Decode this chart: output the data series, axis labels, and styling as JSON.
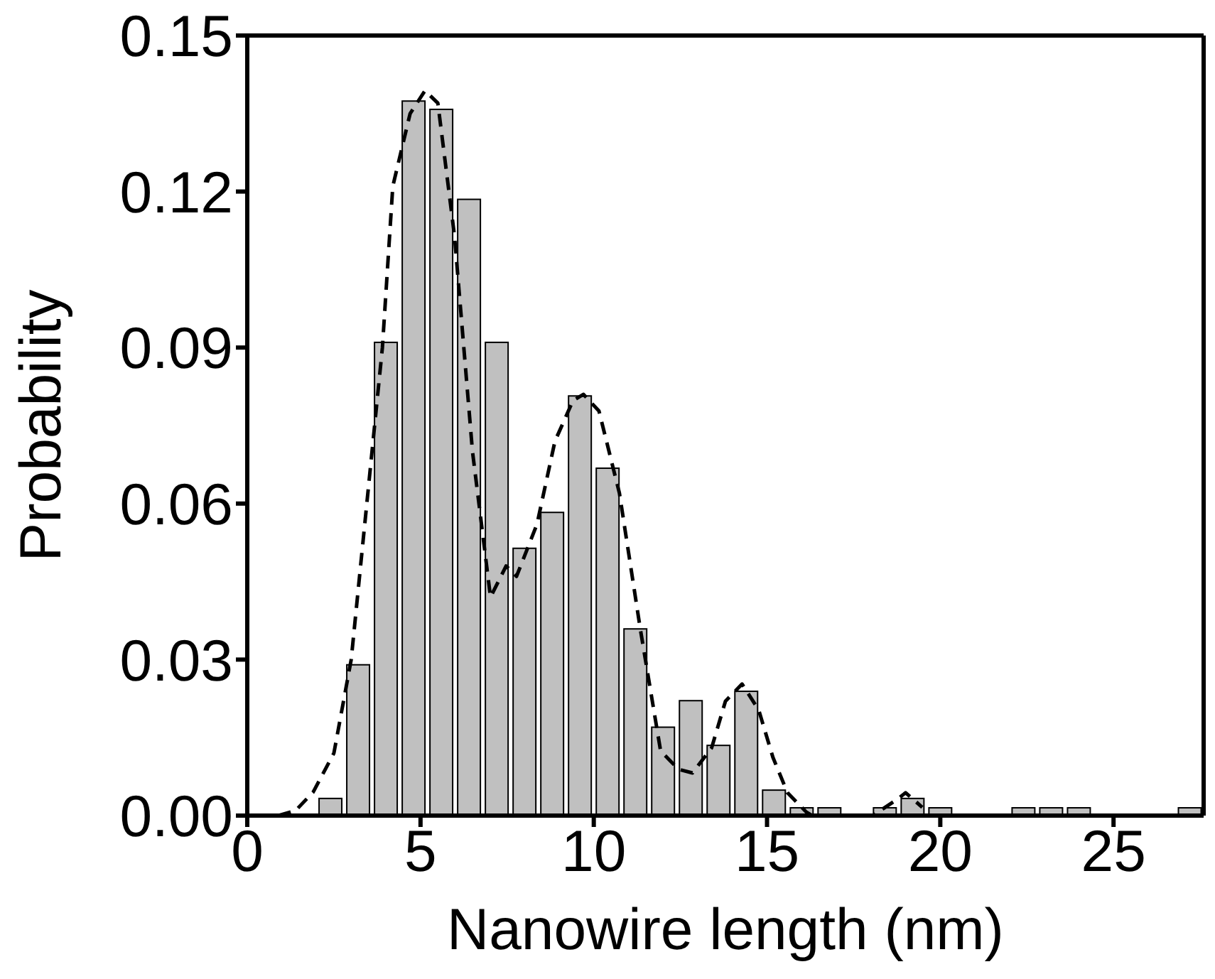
{
  "chart_data": {
    "type": "histogram",
    "xlabel": "Nanowire length (nm)",
    "ylabel": "Probability",
    "xlim": [
      0,
      27.6
    ],
    "xticks": [
      0,
      5,
      10,
      15,
      20,
      25
    ],
    "ylim": [
      0,
      0.15
    ],
    "yticks": [
      {
        "value": 0,
        "label": "0.00"
      },
      0.03,
      0.06,
      0.09,
      0.12,
      0.15
    ],
    "series": [
      {
        "color": "#c0c0c0",
        "bins": [
          2.0,
          2.8,
          3.6,
          4.4,
          5.2,
          6.0,
          6.8,
          7.6,
          8.4,
          9.2,
          10.0,
          10.8,
          11.6,
          12.4,
          13.2,
          14.0,
          14.8,
          15.6,
          16.4,
          17.2,
          18.0,
          18.8,
          19.6,
          20.4,
          21.2,
          22.0,
          22.8,
          23.6,
          24.4,
          25.2,
          26.0,
          26.8,
          27.6
        ],
        "values": [
          0.0033,
          0.029,
          0.091,
          0.1374,
          0.1358,
          0.1185,
          0.091,
          0.0514,
          0.0583,
          0.0807,
          0.0668,
          0.0359,
          0.017,
          0.0221,
          0.0135,
          0.0239,
          0.0049,
          0.0015,
          0.0015,
          0,
          0.0015,
          0.0033,
          0.0015,
          0,
          0,
          0.0015,
          0.0015,
          0.0015,
          0,
          0,
          0,
          0.0015
        ]
      },
      {
        "type": "line",
        "color": "#000000",
        "line_style": "dashed",
        "marker": "none",
        "x": [
          0.9,
          1.4,
          1.9,
          2.5,
          3.0,
          3.45,
          3.9,
          4.2,
          4.7,
          5.13,
          5.5,
          5.98,
          6.5,
          7.02,
          7.47,
          7.77,
          8.36,
          8.88,
          9.4,
          9.7,
          10.15,
          10.74,
          11.34,
          11.93,
          12.45,
          12.85,
          13.4,
          13.8,
          14.28,
          14.76,
          15.17,
          15.59,
          16.13,
          16.3,
          18.05,
          18.73,
          19.0,
          19.48
        ],
        "values": [
          0,
          0.001,
          0.0045,
          0.012,
          0.03,
          0.06,
          0.09,
          0.121,
          0.135,
          0.1394,
          0.137,
          0.1115,
          0.07,
          0.042,
          0.048,
          0.046,
          0.056,
          0.072,
          0.0798,
          0.081,
          0.0778,
          0.062,
          0.036,
          0.0124,
          0.0089,
          0.0082,
          0.013,
          0.022,
          0.0253,
          0.0203,
          0.0112,
          0.0044,
          0.0007,
          0,
          0,
          0.003,
          0.0044,
          0.0016
        ]
      }
    ]
  }
}
